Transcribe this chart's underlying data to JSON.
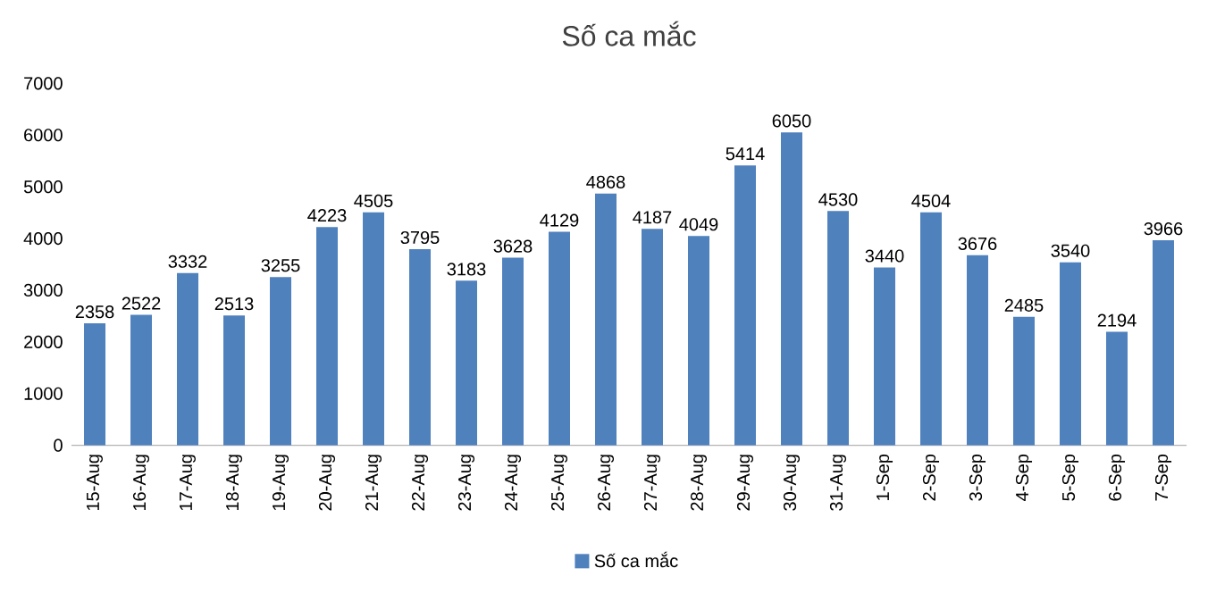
{
  "chart_data": {
    "type": "bar",
    "title": "Số ca mắc",
    "categories": [
      "15-Aug",
      "16-Aug",
      "17-Aug",
      "18-Aug",
      "19-Aug",
      "20-Aug",
      "21-Aug",
      "22-Aug",
      "23-Aug",
      "24-Aug",
      "25-Aug",
      "26-Aug",
      "27-Aug",
      "28-Aug",
      "29-Aug",
      "30-Aug",
      "31-Aug",
      "1-Sep",
      "2-Sep",
      "3-Sep",
      "4-Sep",
      "5-Sep",
      "6-Sep",
      "7-Sep"
    ],
    "series": [
      {
        "name": "Số ca mắc",
        "color": "#4f81bd",
        "values": [
          2358,
          2522,
          3332,
          2513,
          3255,
          4223,
          4505,
          3795,
          3183,
          3628,
          4129,
          4868,
          4187,
          4049,
          5414,
          6050,
          4530,
          3440,
          4504,
          3676,
          2485,
          3540,
          2194,
          3966
        ]
      }
    ],
    "ylim": [
      0,
      7000
    ],
    "yticks": [
      0,
      1000,
      2000,
      3000,
      4000,
      5000,
      6000,
      7000
    ],
    "data_labels": true,
    "legend": "bottom",
    "grid": false
  }
}
